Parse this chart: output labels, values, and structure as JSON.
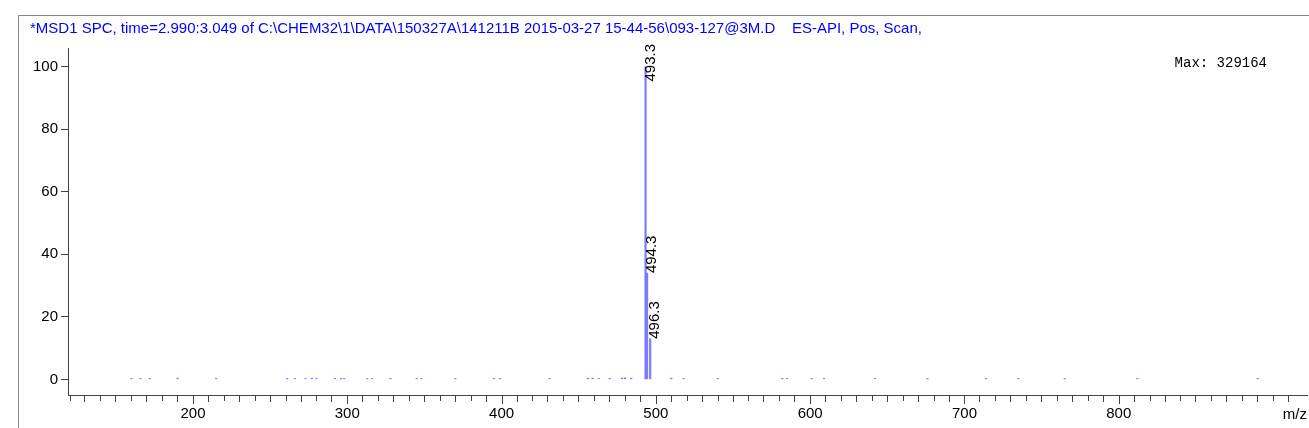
{
  "chart_data": {
    "type": "bar",
    "title": "*MSD1 SPC, time=2.990:3.049 of C:\\CHEM32\\1\\DATA\\150327A\\141211B 2015-03-27 15-44-56\\093-127@3M.D    ES-API, Pos, Scan,",
    "xlabel": "m/z",
    "x": [
      160,
      166,
      172,
      190,
      215,
      261,
      266,
      273,
      277,
      280,
      292,
      296,
      298,
      313,
      316,
      328,
      345,
      348,
      370,
      395,
      399,
      431,
      456,
      459,
      463,
      470,
      478,
      480,
      484,
      493.3,
      494.3,
      496.3,
      510,
      518,
      540,
      582,
      585,
      601,
      609,
      642,
      676,
      714,
      735,
      765,
      812,
      890
    ],
    "series": [
      {
        "color": "#7b7bff",
        "values": [
          0.3,
          0.3,
          0.3,
          0.4,
          0.3,
          0.3,
          0.3,
          0.3,
          0.4,
          0.3,
          0.3,
          0.3,
          0.3,
          0.3,
          0.3,
          0.3,
          0.3,
          0.3,
          0.3,
          0.3,
          0.3,
          0.3,
          0.4,
          0.4,
          0.3,
          0.3,
          0.4,
          0.5,
          0.4,
          100,
          34,
          13,
          0.4,
          0.3,
          0.3,
          0.3,
          0.3,
          0.3,
          0.3,
          0.3,
          0.3,
          0.3,
          0.3,
          0.3,
          0.3,
          0.3
        ]
      }
    ],
    "xlim": [
      119,
      922
    ],
    "xticks": [
      {
        "value": 120,
        "label": null
      },
      {
        "value": 140,
        "label": null
      },
      {
        "value": 160,
        "label": null
      },
      {
        "value": 180,
        "label": null
      },
      200,
      {
        "value": 220,
        "label": null
      },
      {
        "value": 240,
        "label": null
      },
      {
        "value": 260,
        "label": null
      },
      {
        "value": 280,
        "label": null
      },
      300,
      {
        "value": 320,
        "label": null
      },
      {
        "value": 340,
        "label": null
      },
      {
        "value": 360,
        "label": null
      },
      {
        "value": 380,
        "label": null
      },
      400,
      {
        "value": 420,
        "label": null
      },
      {
        "value": 440,
        "label": null
      },
      {
        "value": 460,
        "label": null
      },
      {
        "value": 480,
        "label": null
      },
      500,
      {
        "value": 520,
        "label": null
      },
      {
        "value": 540,
        "label": null
      },
      {
        "value": 560,
        "label": null
      },
      {
        "value": 580,
        "label": null
      },
      600,
      {
        "value": 620,
        "label": null
      },
      {
        "value": 640,
        "label": null
      },
      {
        "value": 660,
        "label": null
      },
      {
        "value": 680,
        "label": null
      },
      700,
      {
        "value": 720,
        "label": null
      },
      {
        "value": 740,
        "label": null
      },
      {
        "value": 760,
        "label": null
      },
      {
        "value": 780,
        "label": null
      },
      800,
      {
        "value": 820,
        "label": null
      },
      {
        "value": 840,
        "label": null
      },
      {
        "value": 860,
        "label": null
      },
      {
        "value": 880,
        "label": null
      },
      {
        "value": 900,
        "label": null
      }
    ],
    "ylim": [
      -5,
      106
    ],
    "yticks": [
      0,
      20,
      40,
      60,
      80,
      100
    ],
    "annotations": [
      {
        "text": "493.3",
        "x": 493.3,
        "y": 100
      },
      {
        "text": "494.3",
        "x": 494.3,
        "y": 34
      },
      {
        "text": "496.3",
        "x": 496.3,
        "y": 13
      },
      "Max: 329164"
    ],
    "grid": false,
    "legend": false
  }
}
